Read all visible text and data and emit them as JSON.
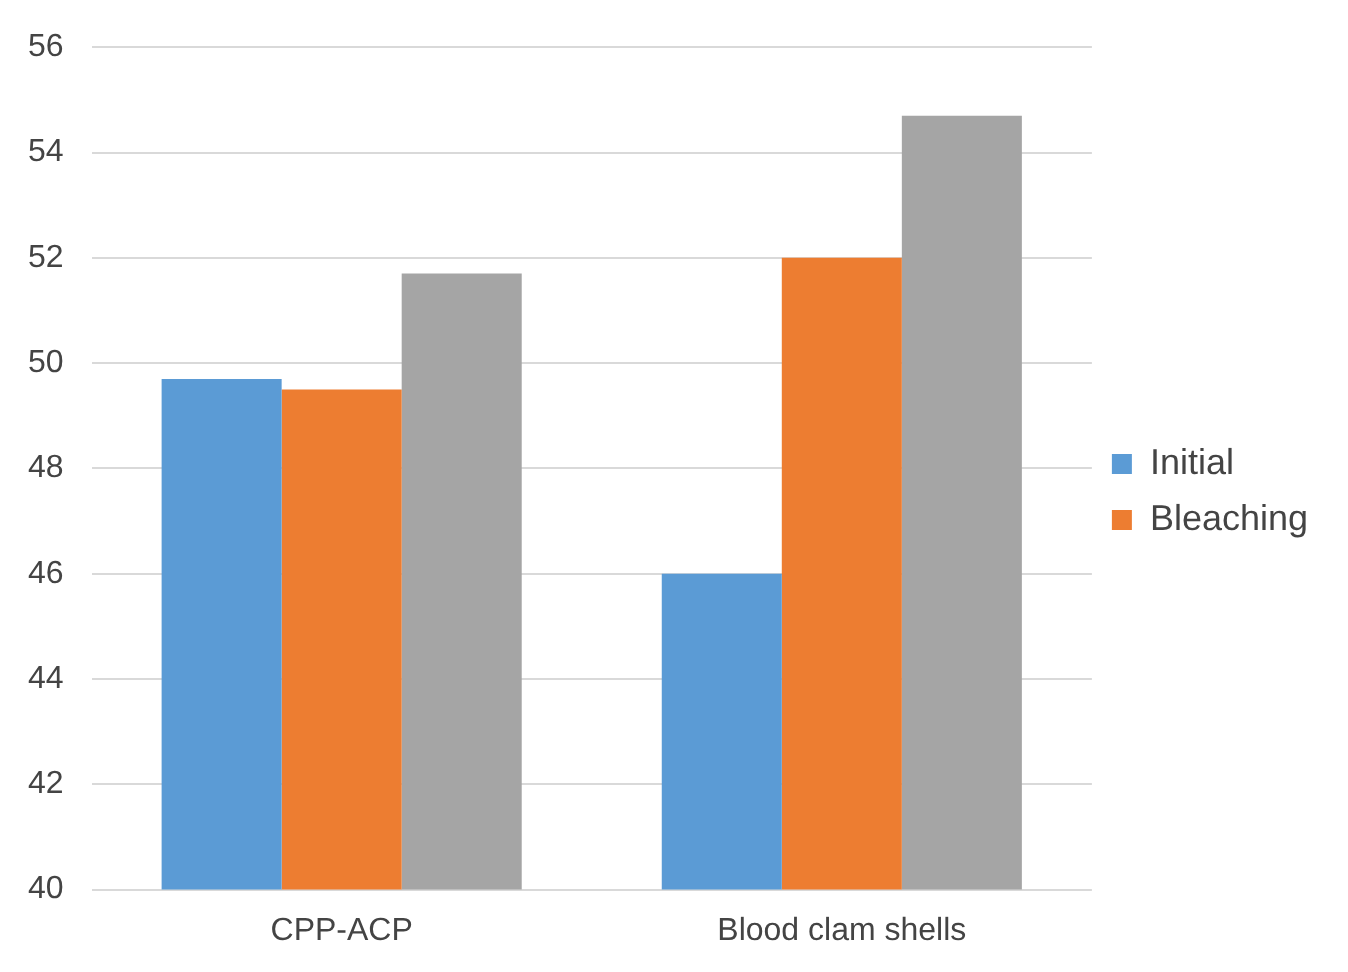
{
  "chart_data": {
    "type": "bar",
    "categories": [
      "CPP-ACP",
      "Blood clam shells"
    ],
    "series": [
      {
        "name": "Initial",
        "color": "#5b9bd5",
        "values": [
          49.7,
          46.0
        ]
      },
      {
        "name": "Bleaching",
        "color": "#ed7d31",
        "values": [
          49.5,
          52.0
        ]
      },
      {
        "color": "#a5a5a5",
        "values": [
          51.7,
          54.7
        ]
      }
    ],
    "ylim": [
      40,
      56
    ],
    "yticks": [
      40,
      42,
      44,
      46,
      48,
      50,
      52,
      54,
      56
    ],
    "grid": "y",
    "legend": "right"
  }
}
